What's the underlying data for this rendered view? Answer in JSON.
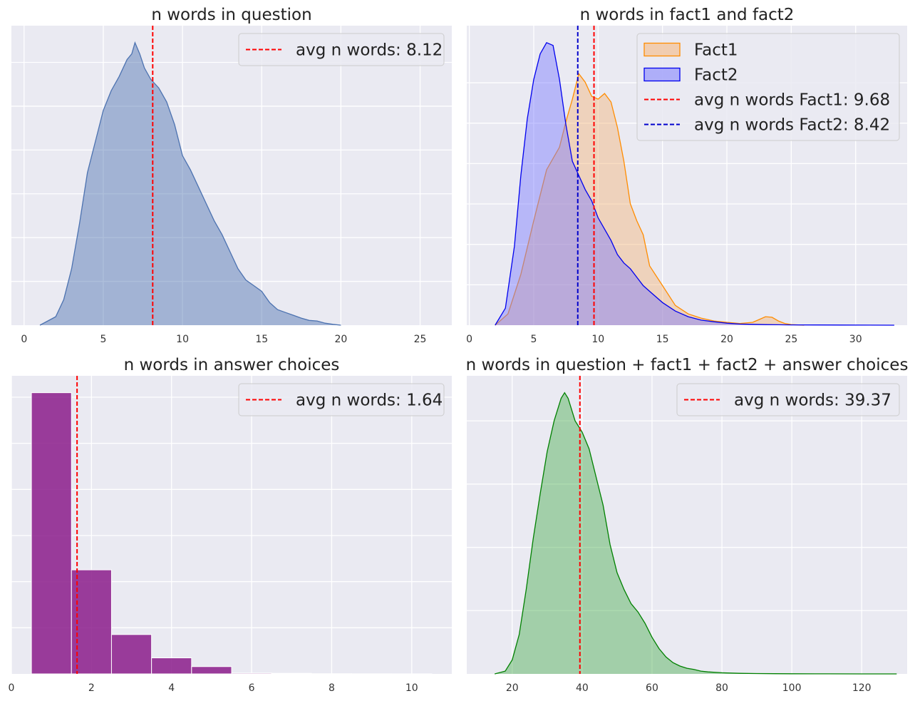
{
  "chart_data": [
    {
      "type": "area",
      "title": "n words in question",
      "xlabel": "",
      "ylabel": "",
      "xlim": [
        -0.8,
        27.0
      ],
      "ylim": [
        0,
        1.06
      ],
      "xticks": [
        0,
        5,
        10,
        15,
        20,
        25
      ],
      "xtick_labels": [
        "0",
        "5",
        "10",
        "15",
        "20",
        "25"
      ],
      "ygrid": [
        0.155,
        0.31,
        0.465,
        0.62,
        0.775,
        0.93
      ],
      "grid": true,
      "legend_position": "upper-right",
      "series": [
        {
          "kind": "kde",
          "color": "#4c72b0",
          "fill": "#4c72b0",
          "x": [
            1,
            2,
            2.5,
            3,
            3.5,
            4,
            4.5,
            5,
            5.5,
            6,
            6.5,
            6.8,
            7,
            7.3,
            7.6,
            8,
            8.5,
            9,
            9.5,
            10,
            10.5,
            11,
            11.5,
            12,
            12.5,
            13,
            13.5,
            14,
            14.5,
            15,
            15.5,
            16,
            16.5,
            17,
            17.5,
            18,
            18.5,
            19,
            19.5,
            20
          ],
          "y": [
            0.0,
            0.03,
            0.09,
            0.2,
            0.36,
            0.54,
            0.65,
            0.76,
            0.83,
            0.88,
            0.94,
            0.96,
            1.0,
            0.96,
            0.91,
            0.87,
            0.84,
            0.79,
            0.71,
            0.6,
            0.55,
            0.49,
            0.43,
            0.37,
            0.32,
            0.26,
            0.2,
            0.16,
            0.14,
            0.12,
            0.08,
            0.055,
            0.045,
            0.035,
            0.025,
            0.017,
            0.015,
            0.007,
            0.003,
            0.0
          ]
        }
      ],
      "vlines": [
        {
          "x": 8.12,
          "color": "#ff0000",
          "label": "avg n words: 8.12"
        }
      ]
    },
    {
      "type": "area",
      "title": "n words in fact1 and fact2",
      "xlabel": "",
      "ylabel": "",
      "xlim": [
        -0.2,
        34.0
      ],
      "ylim": [
        0,
        1.06
      ],
      "xticks": [
        0,
        5,
        10,
        15,
        20,
        25,
        30
      ],
      "xtick_labels": [
        "0",
        "5",
        "10",
        "15",
        "20",
        "25",
        "30"
      ],
      "ygrid": [
        0.143,
        0.286,
        0.429,
        0.572,
        0.715,
        0.858
      ],
      "grid": true,
      "legend_position": "upper-right",
      "series": [
        {
          "name": "Fact1",
          "kind": "kde",
          "color": "#ff8c00",
          "fill": "#f5b57a",
          "x": [
            2,
            3,
            4,
            5,
            6,
            7,
            7.5,
            8,
            8.5,
            9,
            9.5,
            10,
            10.5,
            11,
            11.5,
            12,
            12.5,
            13,
            13.5,
            14,
            15,
            16,
            17,
            18,
            19,
            20,
            21,
            22,
            22.5,
            23,
            23.5,
            24,
            24.5,
            25,
            26
          ],
          "y": [
            0.0,
            0.04,
            0.18,
            0.37,
            0.55,
            0.63,
            0.72,
            0.8,
            0.89,
            0.86,
            0.81,
            0.8,
            0.82,
            0.79,
            0.7,
            0.58,
            0.43,
            0.37,
            0.32,
            0.21,
            0.14,
            0.07,
            0.04,
            0.025,
            0.015,
            0.01,
            0.006,
            0.01,
            0.02,
            0.03,
            0.028,
            0.015,
            0.006,
            0.002,
            0.0
          ]
        },
        {
          "name": "Fact2",
          "kind": "kde",
          "color": "#0000ee",
          "fill": "#7b7bff",
          "x": [
            2,
            2.8,
            3.5,
            4,
            4.5,
            5,
            5.5,
            6,
            6.5,
            7,
            7.5,
            8,
            8.5,
            9,
            9.5,
            10,
            10.5,
            11,
            11.5,
            12,
            12.5,
            13,
            13.5,
            14,
            15,
            16,
            17,
            18,
            19,
            20,
            21,
            22,
            23,
            24,
            25,
            27,
            29,
            31,
            33
          ],
          "y": [
            0.0,
            0.06,
            0.28,
            0.53,
            0.73,
            0.87,
            0.96,
            1.0,
            0.99,
            0.87,
            0.71,
            0.58,
            0.53,
            0.48,
            0.44,
            0.38,
            0.34,
            0.3,
            0.25,
            0.22,
            0.2,
            0.17,
            0.14,
            0.12,
            0.08,
            0.05,
            0.03,
            0.018,
            0.012,
            0.007,
            0.004,
            0.003,
            0.002,
            0.0015,
            0.001,
            0.0007,
            0.0004,
            0.0002,
            0.0
          ]
        }
      ],
      "vlines": [
        {
          "x": 9.68,
          "color": "#ff0000",
          "label": "avg n words Fact1: 9.68"
        },
        {
          "x": 8.42,
          "color": "#0000cc",
          "label": "avg n words Fact2: 8.42"
        }
      ]
    },
    {
      "type": "bar",
      "title": "n words in answer choices",
      "xlabel": "",
      "ylabel": "",
      "xlim": [
        0,
        11.0
      ],
      "ylim": [
        0,
        1.06
      ],
      "xticks": [
        0,
        2,
        4,
        6,
        8,
        10
      ],
      "xtick_labels": [
        "0",
        "2",
        "4",
        "6",
        "8",
        "10"
      ],
      "ygrid": [
        0.164,
        0.328,
        0.492,
        0.656,
        0.82,
        0.984
      ],
      "grid": true,
      "legend_position": "upper-right",
      "series": [
        {
          "kind": "hist",
          "color": "#8b1c8b",
          "bins": [
            [
              0.5,
              1.5
            ],
            [
              1.5,
              2.5
            ],
            [
              2.5,
              3.5
            ],
            [
              3.5,
              4.5
            ],
            [
              4.5,
              5.5
            ],
            [
              5.5,
              6.5
            ],
            [
              6.5,
              7.5
            ],
            [
              7.5,
              8.5
            ],
            [
              8.5,
              9.5
            ],
            [
              9.5,
              10.5
            ]
          ],
          "values": [
            1.0,
            0.37,
            0.14,
            0.057,
            0.026,
            0.003,
            0.002,
            0.0008,
            0.0004,
            0.0002
          ]
        }
      ],
      "vlines": [
        {
          "x": 1.64,
          "color": "#ff0000",
          "label": "avg n words: 1.64"
        }
      ]
    },
    {
      "type": "area",
      "title": "n words in question + fact1 + fact2 + answer choices",
      "xlabel": "",
      "ylabel": "",
      "xlim": [
        7.0,
        133.0
      ],
      "ylim": [
        0,
        1.06
      ],
      "xticks": [
        20,
        40,
        60,
        80,
        100,
        120
      ],
      "xtick_labels": [
        "20",
        "40",
        "60",
        "80",
        "100",
        "120"
      ],
      "ygrid": [
        0.225,
        0.45,
        0.675,
        0.9
      ],
      "grid": true,
      "legend_position": "upper-right",
      "series": [
        {
          "kind": "kde",
          "color": "#008000",
          "fill": "#4caf50",
          "x": [
            15,
            18,
            20,
            22,
            24,
            26,
            28,
            30,
            32,
            34,
            35,
            36,
            38,
            40,
            42,
            44,
            46,
            48,
            50,
            52,
            54,
            56,
            58,
            60,
            62,
            64,
            66,
            68,
            70,
            72,
            74,
            76,
            80,
            85,
            90,
            95,
            100,
            110,
            120,
            130
          ],
          "y": [
            0.0,
            0.01,
            0.05,
            0.14,
            0.3,
            0.48,
            0.64,
            0.79,
            0.9,
            0.98,
            1.0,
            0.98,
            0.9,
            0.86,
            0.8,
            0.7,
            0.6,
            0.46,
            0.36,
            0.3,
            0.25,
            0.22,
            0.18,
            0.13,
            0.09,
            0.06,
            0.04,
            0.028,
            0.02,
            0.016,
            0.01,
            0.007,
            0.004,
            0.002,
            0.0012,
            0.0008,
            0.0005,
            0.0003,
            0.0001,
            0.0
          ]
        }
      ],
      "vlines": [
        {
          "x": 39.37,
          "color": "#ff0000",
          "label": "avg n words: 39.37"
        }
      ]
    }
  ]
}
